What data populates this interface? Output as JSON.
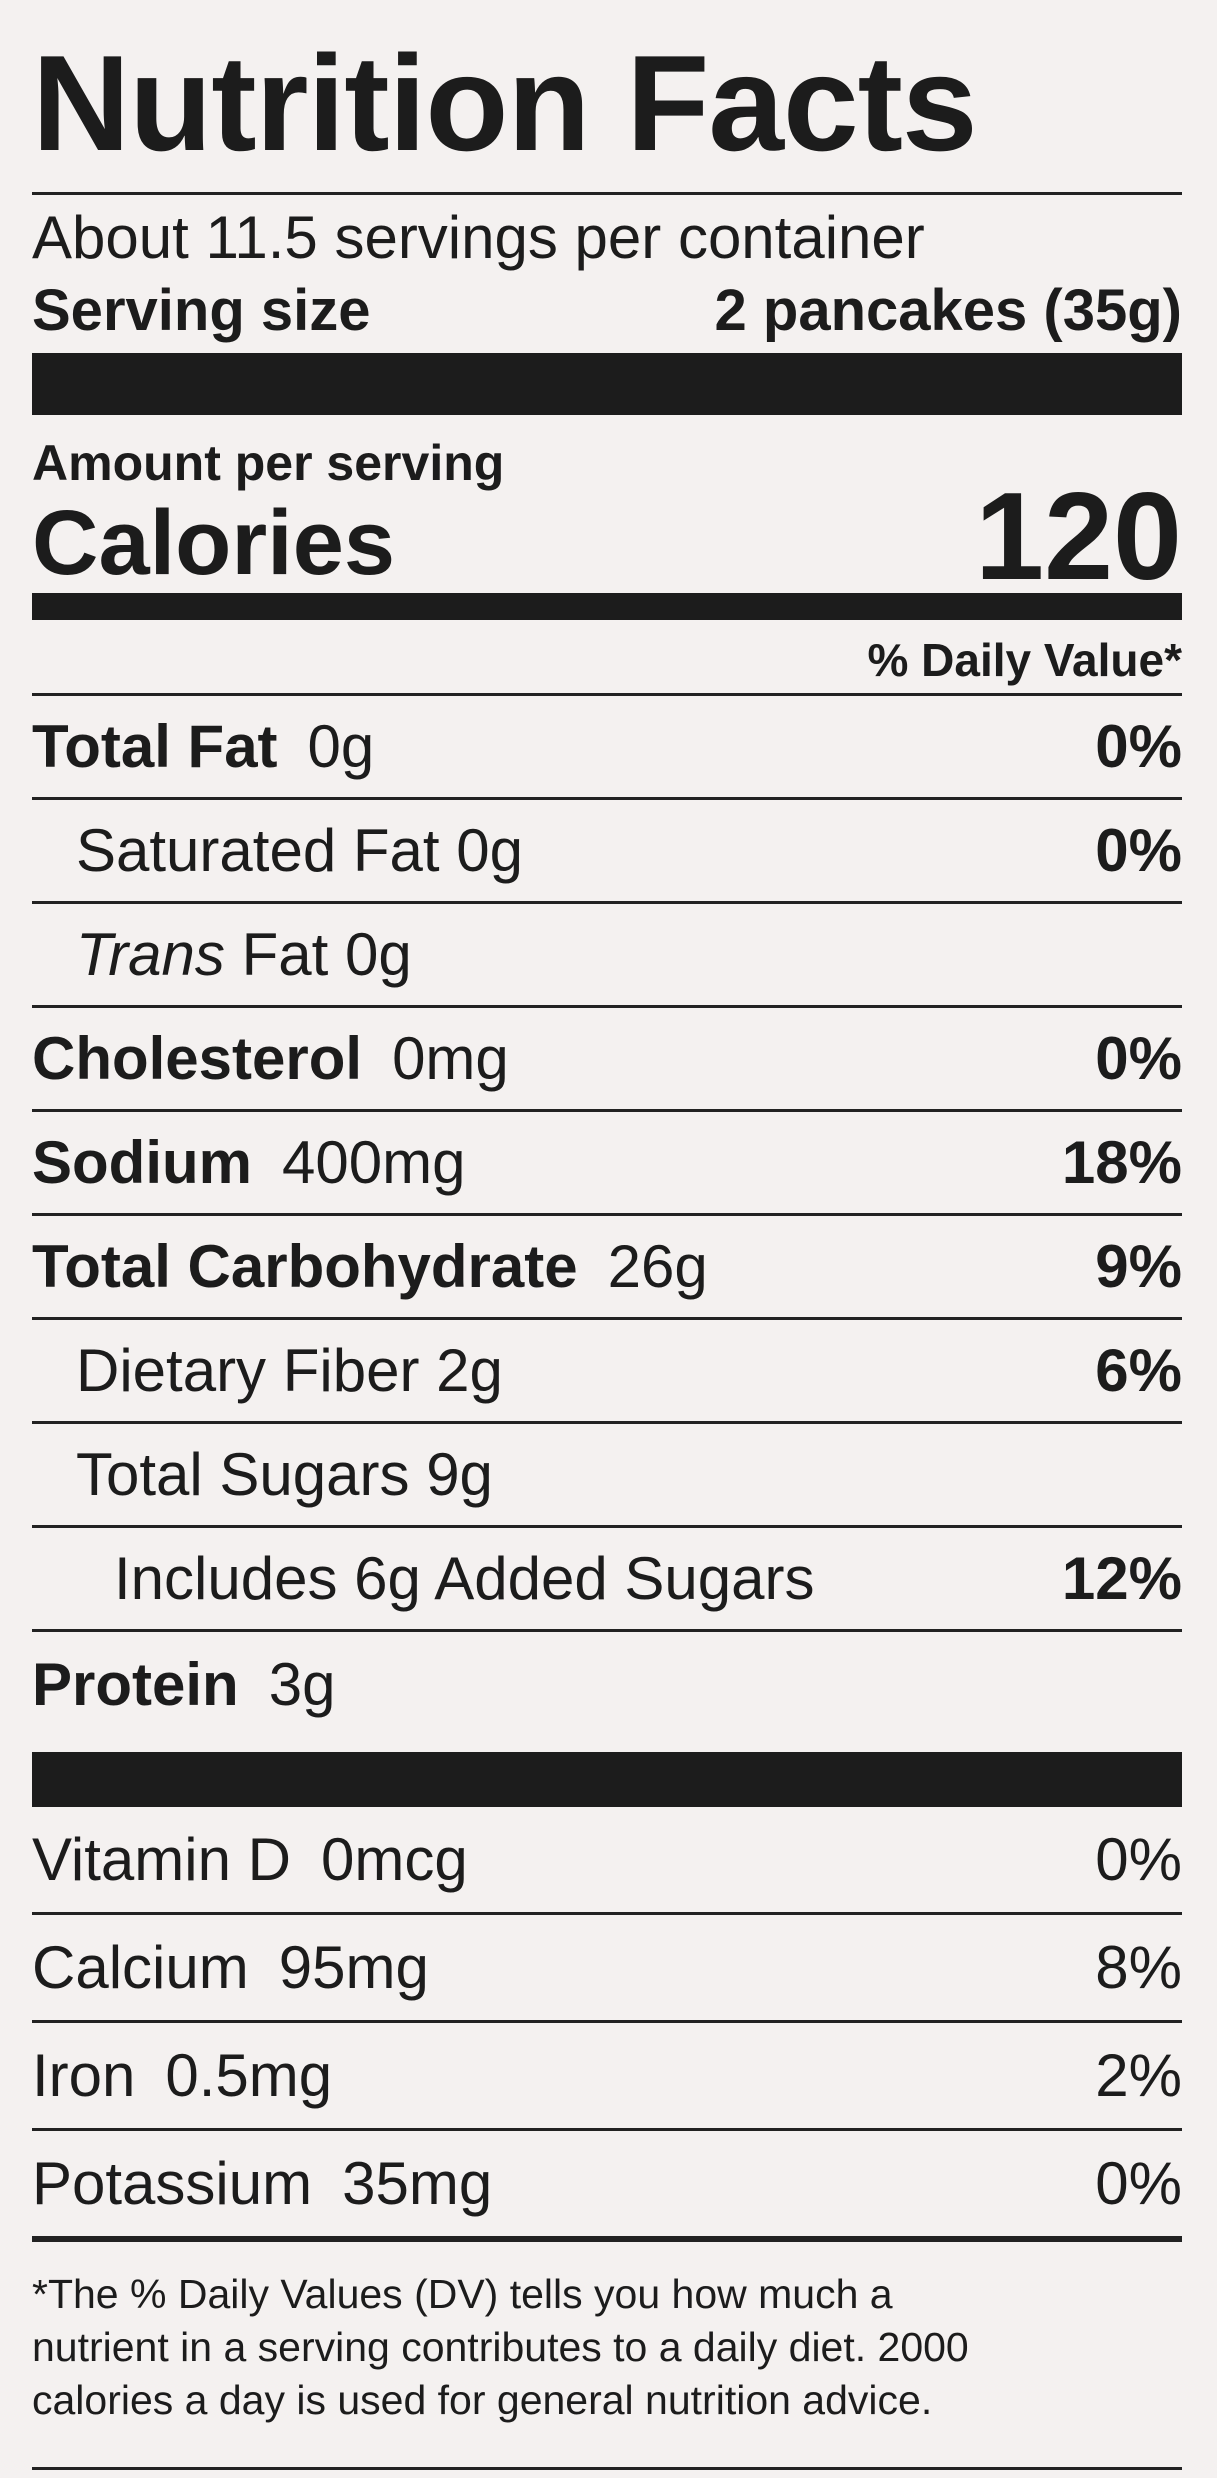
{
  "title": "Nutrition Facts",
  "servings": "About 11.5 servings per container",
  "serving_size": {
    "label": "Serving size",
    "value": "2 pancakes (35g)"
  },
  "amount_per_serving": "Amount per serving",
  "calories": {
    "label": "Calories",
    "value": "120"
  },
  "dv_header": "% Daily Value*",
  "nutrients": [
    {
      "name": "Total Fat",
      "amount": "0g",
      "dv": "0%",
      "sub": [
        {
          "name": "Saturated Fat",
          "amount": "0g",
          "dv": "0%"
        },
        {
          "prefix": "Trans",
          "name": "Fat",
          "amount": "0g"
        }
      ]
    },
    {
      "name": "Cholesterol",
      "amount": "0mg",
      "dv": "0%"
    },
    {
      "name": "Sodium",
      "amount": "400mg",
      "dv": "18%"
    },
    {
      "name": "Total Carbohydrate",
      "amount": "26g",
      "dv": "9%",
      "sub": [
        {
          "name": "Dietary Fiber",
          "amount": "2g",
          "dv": "6%"
        },
        {
          "name": "Total Sugars",
          "amount": "9g",
          "sub": [
            {
              "name": "Includes 6g Added Sugars",
              "dv": "12%"
            }
          ]
        }
      ]
    },
    {
      "name": "Protein",
      "amount": "3g"
    }
  ],
  "vitamins": [
    {
      "name": "Vitamin D",
      "amount": "0mcg",
      "dv": "0%"
    },
    {
      "name": "Calcium",
      "amount": "95mg",
      "dv": "8%"
    },
    {
      "name": "Iron",
      "amount": "0.5mg",
      "dv": "2%"
    },
    {
      "name": "Potassium",
      "amount": "35mg",
      "dv": "0%"
    }
  ],
  "footnote": [
    "*The % Daily Values (DV) tells you how much a",
    "nutrient in a serving contributes to a daily diet. 2000",
    "calories a day is used for general nutrition advice."
  ]
}
